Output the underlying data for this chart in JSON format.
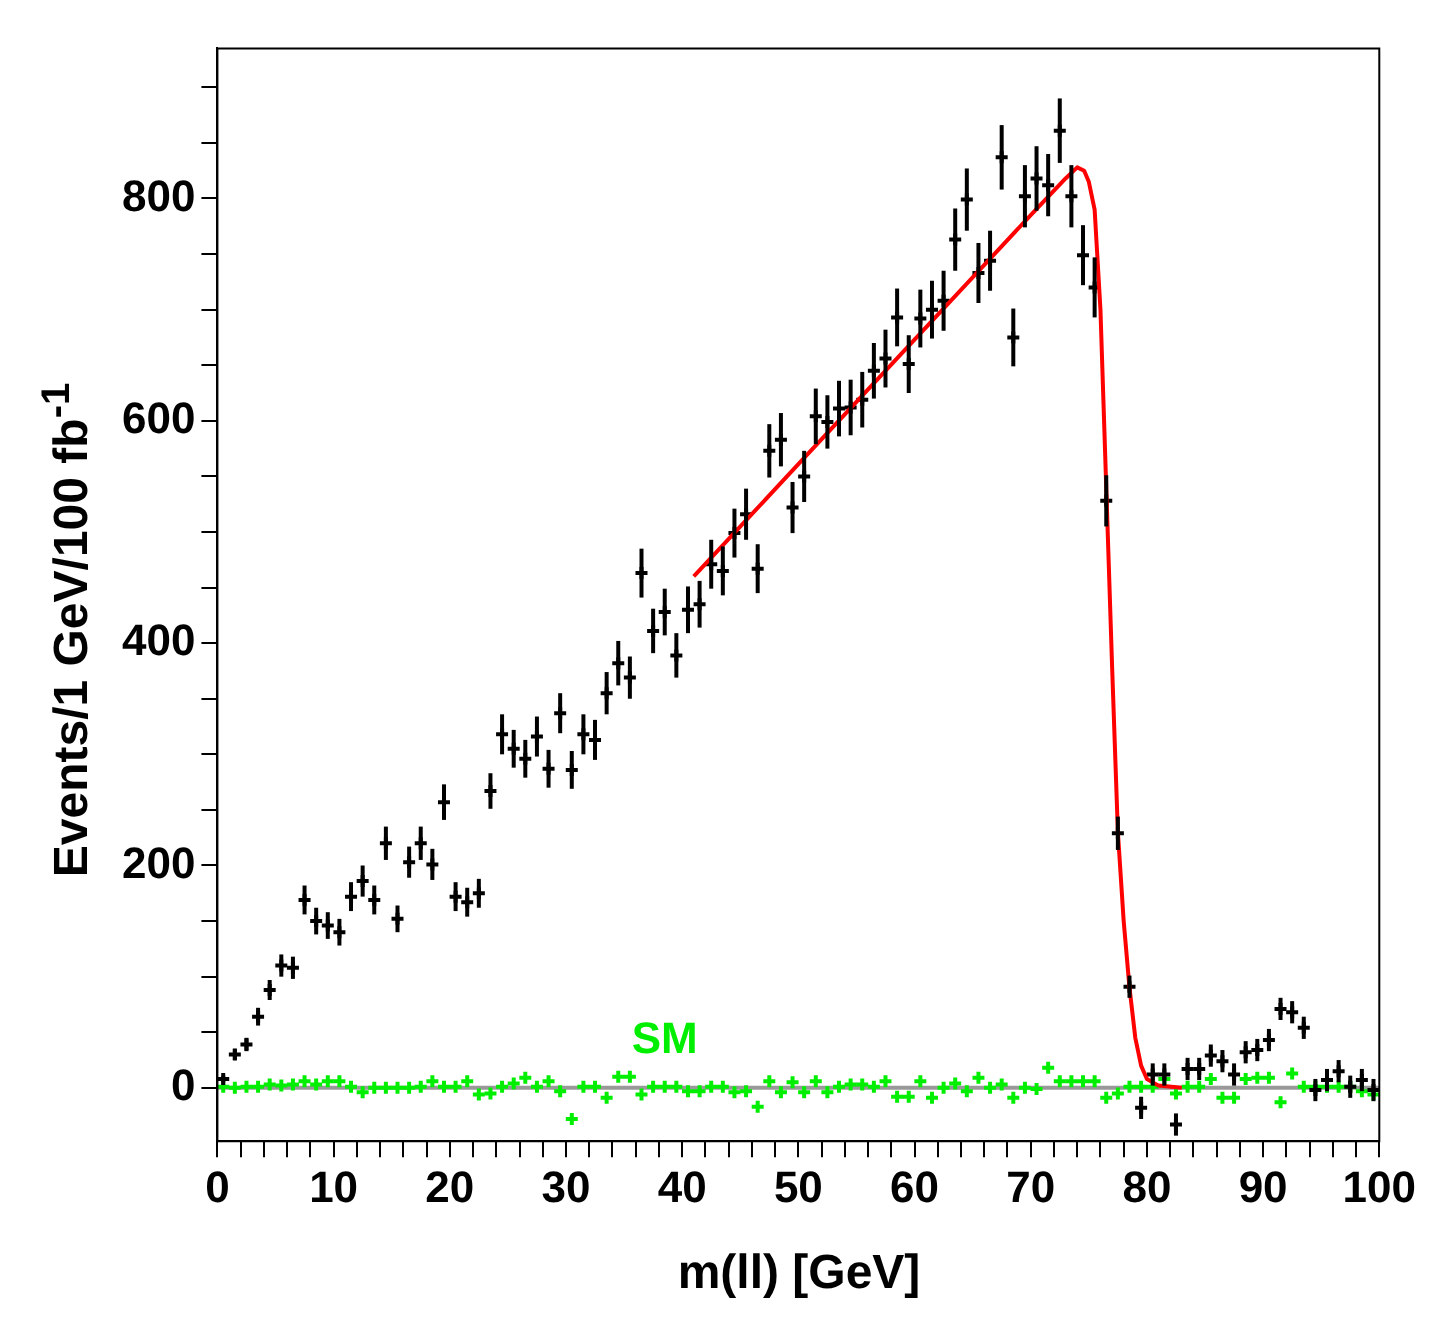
{
  "chart_data": {
    "type": "scatter",
    "xlabel": "m(ll) [GeV]",
    "ylabel": "Events/1 GeV/100 fb$^{-1}$",
    "x": [
      0.5,
      1.5,
      2.5,
      3.5,
      4.5,
      5.5,
      6.5,
      7.5,
      8.5,
      9.5,
      10.5,
      11.5,
      12.5,
      13.5,
      14.5,
      15.5,
      16.5,
      17.5,
      18.5,
      19.5,
      20.5,
      21.5,
      22.5,
      23.5,
      24.5,
      25.5,
      26.5,
      27.5,
      28.5,
      29.5,
      30.5,
      31.5,
      32.5,
      33.5,
      34.5,
      35.5,
      36.5,
      37.5,
      38.5,
      39.5,
      40.5,
      41.5,
      42.5,
      43.5,
      44.5,
      45.5,
      46.5,
      47.5,
      48.5,
      49.5,
      50.5,
      51.5,
      52.5,
      53.5,
      54.5,
      55.5,
      56.5,
      57.5,
      58.5,
      59.5,
      60.5,
      61.5,
      62.5,
      63.5,
      64.5,
      65.5,
      66.5,
      67.5,
      68.5,
      69.5,
      70.5,
      71.5,
      72.5,
      73.5,
      74.5,
      75.5,
      76.5,
      77.5,
      78.5,
      79.5,
      80.5,
      81.5,
      82.5,
      83.5,
      84.5,
      85.5,
      86.5,
      87.5,
      88.5,
      89.5,
      90.5,
      91.5,
      92.5,
      93.5,
      94.5,
      95.5,
      96.5,
      97.5,
      98.5,
      99.5
    ],
    "series": [
      {
        "type": "scatter",
        "color": "#000000",
        "marker": "cross",
        "values": [
          8,
          30,
          39,
          64,
          88,
          110,
          108,
          169,
          150,
          146,
          140,
          172,
          186,
          169,
          220,
          152,
          203,
          220,
          201,
          257,
          172,
          167,
          175,
          267,
          318,
          305,
          296,
          316,
          287,
          337,
          286,
          318,
          313,
          355,
          382,
          369,
          463,
          411,
          428,
          389,
          430,
          435,
          471,
          465,
          499,
          516,
          467,
          573,
          583,
          522,
          550,
          604,
          599,
          611,
          612,
          619,
          645,
          656,
          693,
          651,
          692,
          700,
          708,
          763,
          799,
          733,
          744,
          837,
          675,
          802,
          818,
          812,
          861,
          802,
          749,
          720,
          528,
          229,
          91,
          -18,
          12,
          12,
          -33,
          17,
          17,
          29,
          24,
          12,
          32,
          34,
          43,
          71,
          68,
          54,
          -2,
          7,
          15,
          1,
          7,
          -2
        ],
        "errors": [
          3,
          5,
          6,
          8,
          9,
          10,
          10,
          13,
          12,
          12,
          12,
          13,
          14,
          13,
          15,
          12,
          14,
          15,
          14,
          16,
          13,
          13,
          13,
          16,
          18,
          17,
          17,
          18,
          17,
          18,
          17,
          18,
          18,
          19,
          20,
          19,
          22,
          20,
          21,
          20,
          21,
          21,
          22,
          22,
          22,
          23,
          22,
          24,
          24,
          23,
          23,
          25,
          24,
          25,
          25,
          25,
          25,
          26,
          26,
          26,
          26,
          26,
          27,
          28,
          28,
          27,
          27,
          29,
          26,
          28,
          29,
          28,
          29,
          28,
          27,
          27,
          23,
          15,
          10,
          10,
          10,
          10,
          10,
          10,
          10,
          10,
          10,
          10,
          10,
          10,
          10,
          10,
          10,
          10,
          10,
          10,
          10,
          10,
          10,
          10
        ]
      },
      {
        "type": "scatter",
        "name": "SM",
        "color": "#00ee00",
        "marker": "cross",
        "values": [
          1,
          0,
          1,
          1,
          3,
          2,
          3,
          6,
          3,
          6,
          6,
          1,
          -4,
          0,
          0,
          0,
          0,
          1,
          6,
          1,
          1,
          6,
          -6,
          -5,
          1,
          4,
          9,
          1,
          6,
          -3,
          -28,
          1,
          1,
          -9,
          10,
          10,
          -6,
          1,
          1,
          1,
          -3,
          -3,
          1,
          1,
          -4,
          -3,
          -17,
          6,
          -4,
          5,
          -4,
          6,
          -4,
          1,
          3,
          3,
          1,
          6,
          -8,
          -8,
          6,
          -9,
          0,
          4,
          -3,
          9,
          0,
          3,
          -9,
          0,
          -1,
          18,
          6,
          6,
          6,
          6,
          -9,
          -5,
          1,
          1,
          1,
          8,
          -5,
          1,
          1,
          8,
          -9,
          -9,
          8,
          9,
          9,
          -13,
          13,
          1,
          1,
          1,
          1,
          1,
          -3,
          -6
        ]
      },
      {
        "type": "line",
        "color": "#ff0000",
        "line_style": "solid",
        "marker": "none",
        "x": [
          41,
          50,
          60,
          70,
          73,
          74,
          74.6,
          75,
          75.5,
          76,
          76.5,
          77,
          77.5,
          78,
          78.5,
          79,
          79.5,
          80,
          81,
          83
        ],
        "values": [
          460,
          561,
          673,
          785,
          818,
          828,
          825,
          815,
          790,
          700,
          540,
          380,
          230,
          150,
          90,
          45,
          20,
          8,
          2,
          0
        ]
      }
    ],
    "xlim": [
      0,
      100
    ],
    "xticks": [
      0,
      {
        "value": 2,
        "label": null
      },
      {
        "value": 4,
        "label": null
      },
      {
        "value": 6,
        "label": null
      },
      {
        "value": 8,
        "label": null
      },
      10,
      {
        "value": 12,
        "label": null
      },
      {
        "value": 14,
        "label": null
      },
      {
        "value": 16,
        "label": null
      },
      {
        "value": 18,
        "label": null
      },
      20,
      {
        "value": 22,
        "label": null
      },
      {
        "value": 24,
        "label": null
      },
      {
        "value": 26,
        "label": null
      },
      {
        "value": 28,
        "label": null
      },
      30,
      {
        "value": 32,
        "label": null
      },
      {
        "value": 34,
        "label": null
      },
      {
        "value": 36,
        "label": null
      },
      {
        "value": 38,
        "label": null
      },
      40,
      {
        "value": 42,
        "label": null
      },
      {
        "value": 44,
        "label": null
      },
      {
        "value": 46,
        "label": null
      },
      {
        "value": 48,
        "label": null
      },
      50,
      {
        "value": 52,
        "label": null
      },
      {
        "value": 54,
        "label": null
      },
      {
        "value": 56,
        "label": null
      },
      {
        "value": 58,
        "label": null
      },
      60,
      {
        "value": 62,
        "label": null
      },
      {
        "value": 64,
        "label": null
      },
      {
        "value": 66,
        "label": null
      },
      {
        "value": 68,
        "label": null
      },
      70,
      {
        "value": 72,
        "label": null
      },
      {
        "value": 74,
        "label": null
      },
      {
        "value": 76,
        "label": null
      },
      {
        "value": 78,
        "label": null
      },
      80,
      {
        "value": 82,
        "label": null
      },
      {
        "value": 84,
        "label": null
      },
      {
        "value": 86,
        "label": null
      },
      {
        "value": 88,
        "label": null
      },
      90,
      {
        "value": 92,
        "label": null
      },
      {
        "value": 94,
        "label": null
      },
      {
        "value": 96,
        "label": null
      },
      {
        "value": 98,
        "label": null
      },
      100
    ],
    "ylim": [
      -48,
      935
    ],
    "yticks": [
      0,
      {
        "value": 50,
        "label": null
      },
      {
        "value": 100,
        "label": null
      },
      {
        "value": 150,
        "label": null
      },
      200,
      {
        "value": 250,
        "label": null
      },
      {
        "value": 300,
        "label": null
      },
      {
        "value": 350,
        "label": null
      },
      400,
      {
        "value": 450,
        "label": null
      },
      {
        "value": 500,
        "label": null
      },
      {
        "value": 550,
        "label": null
      },
      600,
      {
        "value": 650,
        "label": null
      },
      {
        "value": 700,
        "label": null
      },
      {
        "value": 750,
        "label": null
      },
      800,
      {
        "value": 850,
        "label": null
      },
      {
        "value": 900,
        "label": null
      }
    ],
    "ref_lines": [
      {
        "axis": "y",
        "value": 0,
        "color": "#999999"
      }
    ],
    "grid": false,
    "legend": false
  }
}
